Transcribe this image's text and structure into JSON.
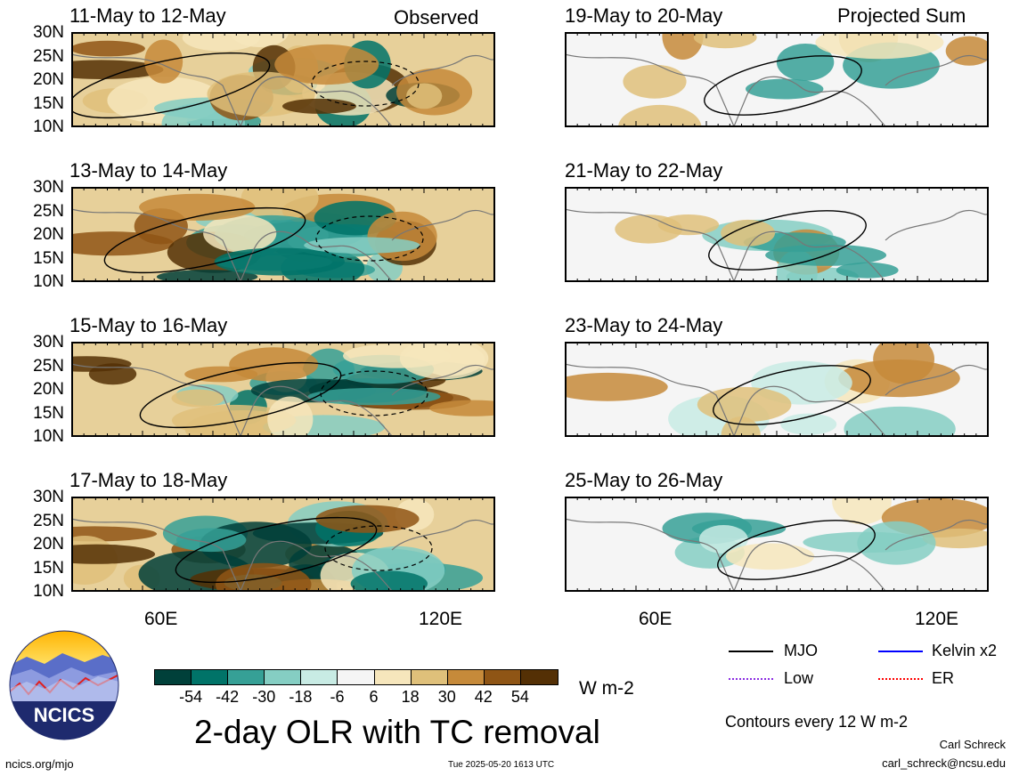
{
  "panels_left": [
    {
      "title": "11-May to 12-May",
      "tag": "Observed"
    },
    {
      "title": "13-May to 14-May",
      "tag": ""
    },
    {
      "title": "15-May to 16-May",
      "tag": ""
    },
    {
      "title": "17-May to 18-May",
      "tag": ""
    }
  ],
  "panels_right": [
    {
      "title": "19-May to 20-May",
      "tag": "Projected Sum"
    },
    {
      "title": "21-May to 22-May",
      "tag": ""
    },
    {
      "title": "23-May to 24-May",
      "tag": ""
    },
    {
      "title": "25-May to 26-May",
      "tag": ""
    }
  ],
  "y_ticks": [
    "30N",
    "25N",
    "20N",
    "15N",
    "10N"
  ],
  "x_ticks": [
    "60E",
    "120E"
  ],
  "colorbar": {
    "labels": [
      "-54",
      "-42",
      "-30",
      "-18",
      "-6",
      "6",
      "18",
      "30",
      "42",
      "54"
    ],
    "colors": [
      "#00403a",
      "#007368",
      "#36a096",
      "#85cec3",
      "#c8ebe4",
      "#f5f5f5",
      "#f6e6bc",
      "#dfc07a",
      "#c68a3a",
      "#8f5515",
      "#543005"
    ],
    "unit": "W m-2"
  },
  "legend": {
    "mjo": "MJO",
    "kelvin": "Kelvin x2",
    "low": "Low",
    "er": "ER",
    "mjo_color": "#000000",
    "kelvin_color": "#0000ff",
    "low_color": "#8a2be2",
    "er_color": "#ff0000"
  },
  "contour_note": "Contours every 12 W m-2",
  "main_title": "2-day OLR with TC removal",
  "logo_text": "NCICS",
  "footer": {
    "url": "ncics.org/mjo",
    "timestamp": "Tue 2025-05-20 1613 UTC",
    "author": "Carl Schreck",
    "email": "carl_schreck@ncsu.edu"
  }
}
